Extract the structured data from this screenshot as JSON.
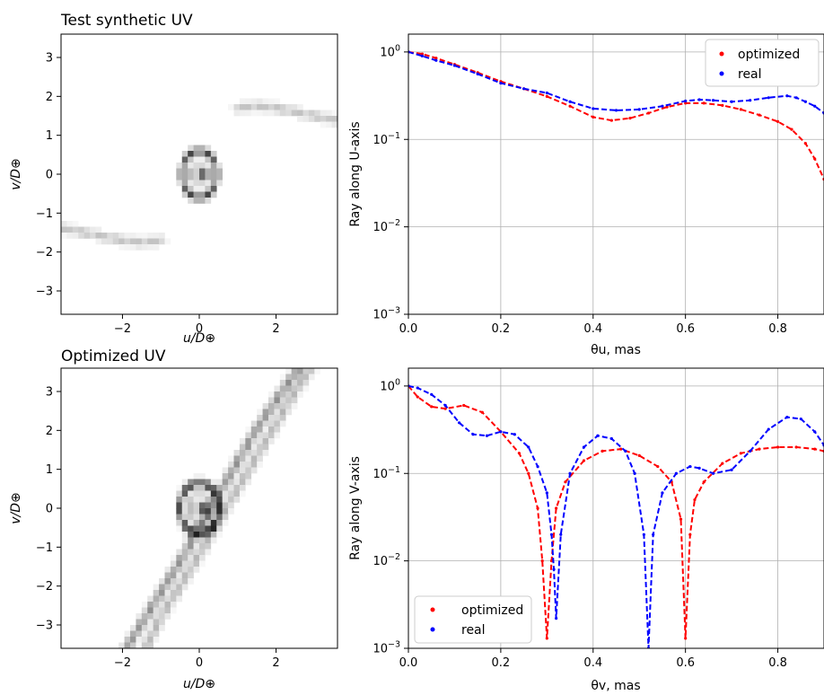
{
  "chart_data": [
    {
      "type": "heatmap",
      "title": "Test synthetic UV",
      "xlabel": "u/D⊕",
      "ylabel": "v/D⊕",
      "xlim": [
        -3.6,
        3.6
      ],
      "ylim": [
        -3.6,
        3.6
      ],
      "xticks": [
        -2,
        0,
        2
      ],
      "yticks": [
        -3,
        -2,
        -1,
        0,
        1,
        2,
        3
      ],
      "colormap": "gray_r",
      "features": [
        {
          "kind": "blob",
          "u": 0.05,
          "v": 0.0,
          "intensity": 0.95
        },
        {
          "kind": "ring",
          "u": 0.0,
          "v": 0.0,
          "r_u": 0.45,
          "r_v": 0.6,
          "intensity": 0.75
        },
        {
          "kind": "arc",
          "points": [
            [
              1.0,
              1.7
            ],
            [
              1.5,
              1.75
            ],
            [
              2.0,
              1.7
            ],
            [
              2.5,
              1.6
            ],
            [
              3.0,
              1.5
            ],
            [
              3.5,
              1.4
            ]
          ],
          "intensity": 0.25
        },
        {
          "kind": "arc",
          "points": [
            [
              -1.0,
              -1.7
            ],
            [
              -1.5,
              -1.75
            ],
            [
              -2.0,
              -1.7
            ],
            [
              -2.5,
              -1.6
            ],
            [
              -3.0,
              -1.5
            ],
            [
              -3.5,
              -1.4
            ]
          ],
          "intensity": 0.25
        }
      ]
    },
    {
      "type": "line",
      "xlabel": "θu, mas",
      "ylabel": "Ray along U-axis",
      "xlim": [
        0.0,
        0.9
      ],
      "ylim": [
        0.001,
        1.6
      ],
      "yscale": "log",
      "xticks": [
        0.0,
        0.2,
        0.4,
        0.6,
        0.8
      ],
      "xtick_labels": [
        "0.0",
        "0.2",
        "0.4",
        "0.6",
        "0.8"
      ],
      "yticks": [
        0.001,
        0.01,
        0.1,
        1
      ],
      "grid": true,
      "legend": "top-right",
      "series": [
        {
          "name": "optimized",
          "color": "#ff0000",
          "x": [
            0.0,
            0.03,
            0.06,
            0.1,
            0.15,
            0.2,
            0.25,
            0.3,
            0.35,
            0.4,
            0.44,
            0.48,
            0.52,
            0.56,
            0.6,
            0.64,
            0.68,
            0.72,
            0.76,
            0.8,
            0.83,
            0.86,
            0.88,
            0.9
          ],
          "y": [
            1.0,
            0.95,
            0.85,
            0.72,
            0.58,
            0.46,
            0.38,
            0.31,
            0.24,
            0.18,
            0.165,
            0.175,
            0.2,
            0.235,
            0.26,
            0.26,
            0.245,
            0.22,
            0.19,
            0.16,
            0.13,
            0.09,
            0.06,
            0.035
          ]
        },
        {
          "name": "real",
          "color": "#0000ff",
          "x": [
            0.0,
            0.03,
            0.06,
            0.1,
            0.15,
            0.2,
            0.25,
            0.3,
            0.35,
            0.4,
            0.45,
            0.5,
            0.55,
            0.6,
            0.63,
            0.66,
            0.7,
            0.74,
            0.78,
            0.82,
            0.84,
            0.86,
            0.88,
            0.9
          ],
          "y": [
            1.0,
            0.9,
            0.8,
            0.7,
            0.56,
            0.44,
            0.38,
            0.34,
            0.27,
            0.225,
            0.215,
            0.22,
            0.24,
            0.275,
            0.285,
            0.28,
            0.27,
            0.28,
            0.3,
            0.315,
            0.3,
            0.27,
            0.24,
            0.2
          ]
        }
      ]
    },
    {
      "type": "heatmap",
      "title": "Optimized UV",
      "xlabel": "u/D⊕",
      "ylabel": "v/D⊕",
      "xlim": [
        -3.6,
        3.6
      ],
      "ylim": [
        -3.6,
        3.6
      ],
      "xticks": [
        -2,
        0,
        2
      ],
      "yticks": [
        -3,
        -2,
        -1,
        0,
        1,
        2,
        3
      ],
      "colormap": "gray_r",
      "features": [
        {
          "kind": "blob",
          "u": 0.05,
          "v": 0.0,
          "intensity": 0.95
        },
        {
          "kind": "ring",
          "u": 0.0,
          "v": 0.0,
          "r_u": 0.5,
          "r_v": 0.65,
          "intensity": 0.8
        },
        {
          "kind": "arc",
          "points": [
            [
              -1.9,
              -3.6
            ],
            [
              -1.4,
              -2.8
            ],
            [
              -0.9,
              -2.0
            ],
            [
              -0.4,
              -1.2
            ],
            [
              0.3,
              0.0
            ],
            [
              1.0,
              1.2
            ],
            [
              1.6,
              2.2
            ],
            [
              2.3,
              3.2
            ],
            [
              2.6,
              3.6
            ]
          ],
          "intensity": 0.45
        },
        {
          "kind": "arc",
          "points": [
            [
              -1.4,
              -3.6
            ],
            [
              -1.0,
              -2.8
            ],
            [
              -0.5,
              -2.0
            ],
            [
              0.0,
              -1.2
            ],
            [
              0.7,
              0.0
            ],
            [
              1.3,
              1.0
            ],
            [
              1.9,
              2.0
            ],
            [
              2.5,
              3.0
            ],
            [
              2.9,
              3.6
            ]
          ],
          "intensity": 0.3
        }
      ]
    },
    {
      "type": "line",
      "xlabel": "θv, mas",
      "ylabel": "Ray along V-axis",
      "xlim": [
        0.0,
        0.9
      ],
      "ylim": [
        0.001,
        1.6
      ],
      "yscale": "log",
      "xticks": [
        0.0,
        0.2,
        0.4,
        0.6,
        0.8
      ],
      "xtick_labels": [
        "0.0",
        "0.2",
        "0.4",
        "0.6",
        "0.8"
      ],
      "yticks": [
        0.001,
        0.01,
        0.1,
        1
      ],
      "grid": true,
      "legend": "bottom-left",
      "series": [
        {
          "name": "optimized",
          "color": "#ff0000",
          "x": [
            0.0,
            0.02,
            0.05,
            0.08,
            0.12,
            0.16,
            0.2,
            0.24,
            0.26,
            0.28,
            0.29,
            0.3,
            0.31,
            0.32,
            0.34,
            0.38,
            0.42,
            0.46,
            0.5,
            0.54,
            0.57,
            0.59,
            0.6,
            0.61,
            0.62,
            0.64,
            0.68,
            0.72,
            0.76,
            0.8,
            0.84,
            0.88,
            0.9
          ],
          "y": [
            1.0,
            0.75,
            0.58,
            0.55,
            0.6,
            0.5,
            0.3,
            0.17,
            0.1,
            0.04,
            0.01,
            0.0013,
            0.01,
            0.04,
            0.08,
            0.14,
            0.18,
            0.19,
            0.16,
            0.12,
            0.08,
            0.03,
            0.0013,
            0.02,
            0.05,
            0.08,
            0.13,
            0.17,
            0.19,
            0.2,
            0.2,
            0.19,
            0.18
          ]
        },
        {
          "name": "real",
          "color": "#0000ff",
          "x": [
            0.0,
            0.02,
            0.05,
            0.08,
            0.11,
            0.14,
            0.17,
            0.2,
            0.23,
            0.26,
            0.28,
            0.3,
            0.31,
            0.315,
            0.32,
            0.33,
            0.35,
            0.38,
            0.41,
            0.44,
            0.47,
            0.49,
            0.51,
            0.52,
            0.53,
            0.55,
            0.58,
            0.61,
            0.63,
            0.66,
            0.7,
            0.74,
            0.78,
            0.82,
            0.85,
            0.88,
            0.9
          ],
          "y": [
            1.0,
            0.95,
            0.8,
            0.6,
            0.38,
            0.28,
            0.27,
            0.3,
            0.28,
            0.2,
            0.12,
            0.06,
            0.02,
            0.008,
            0.0022,
            0.02,
            0.1,
            0.2,
            0.27,
            0.25,
            0.18,
            0.1,
            0.02,
            0.001,
            0.02,
            0.06,
            0.1,
            0.12,
            0.115,
            0.1,
            0.11,
            0.18,
            0.32,
            0.44,
            0.42,
            0.3,
            0.21
          ]
        }
      ]
    }
  ]
}
